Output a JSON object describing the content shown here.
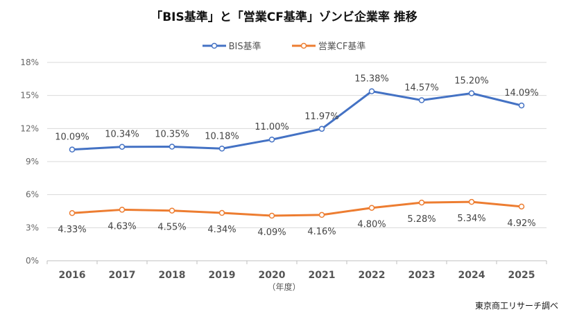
{
  "chart_data": {
    "type": "line",
    "title": "「BIS基準」と「営業CF基準」ゾンビ企業率 推移",
    "xlabel": "（年度）",
    "ylabel": "",
    "categories": [
      "2016",
      "2017",
      "2018",
      "2019",
      "2020",
      "2021",
      "2022",
      "2023",
      "2024",
      "2025"
    ],
    "ylim": [
      0,
      18
    ],
    "yticks": [
      "0%",
      "3%",
      "6%",
      "9%",
      "12%",
      "15%",
      "18%"
    ],
    "grid": true,
    "legend_position": "top",
    "series": [
      {
        "name": "BIS基準",
        "color": "#4472C4",
        "values": [
          10.09,
          10.34,
          10.35,
          10.18,
          11.0,
          11.97,
          15.38,
          14.57,
          15.2,
          14.09
        ],
        "labels": [
          "10.09%",
          "10.34%",
          "10.35%",
          "10.18%",
          "11.00%",
          "11.97%",
          "15.38%",
          "14.57%",
          "15.20%",
          "14.09%"
        ]
      },
      {
        "name": "営業CF基準",
        "color": "#ED7D31",
        "values": [
          4.33,
          4.63,
          4.55,
          4.34,
          4.09,
          4.16,
          4.8,
          5.28,
          5.34,
          4.92
        ],
        "labels": [
          "4.33%",
          "4.63%",
          "4.55%",
          "4.34%",
          "4.09%",
          "4.16%",
          "4.80%",
          "5.28%",
          "5.34%",
          "4.92%"
        ]
      }
    ],
    "source": "東京商工リサーチ調べ"
  }
}
